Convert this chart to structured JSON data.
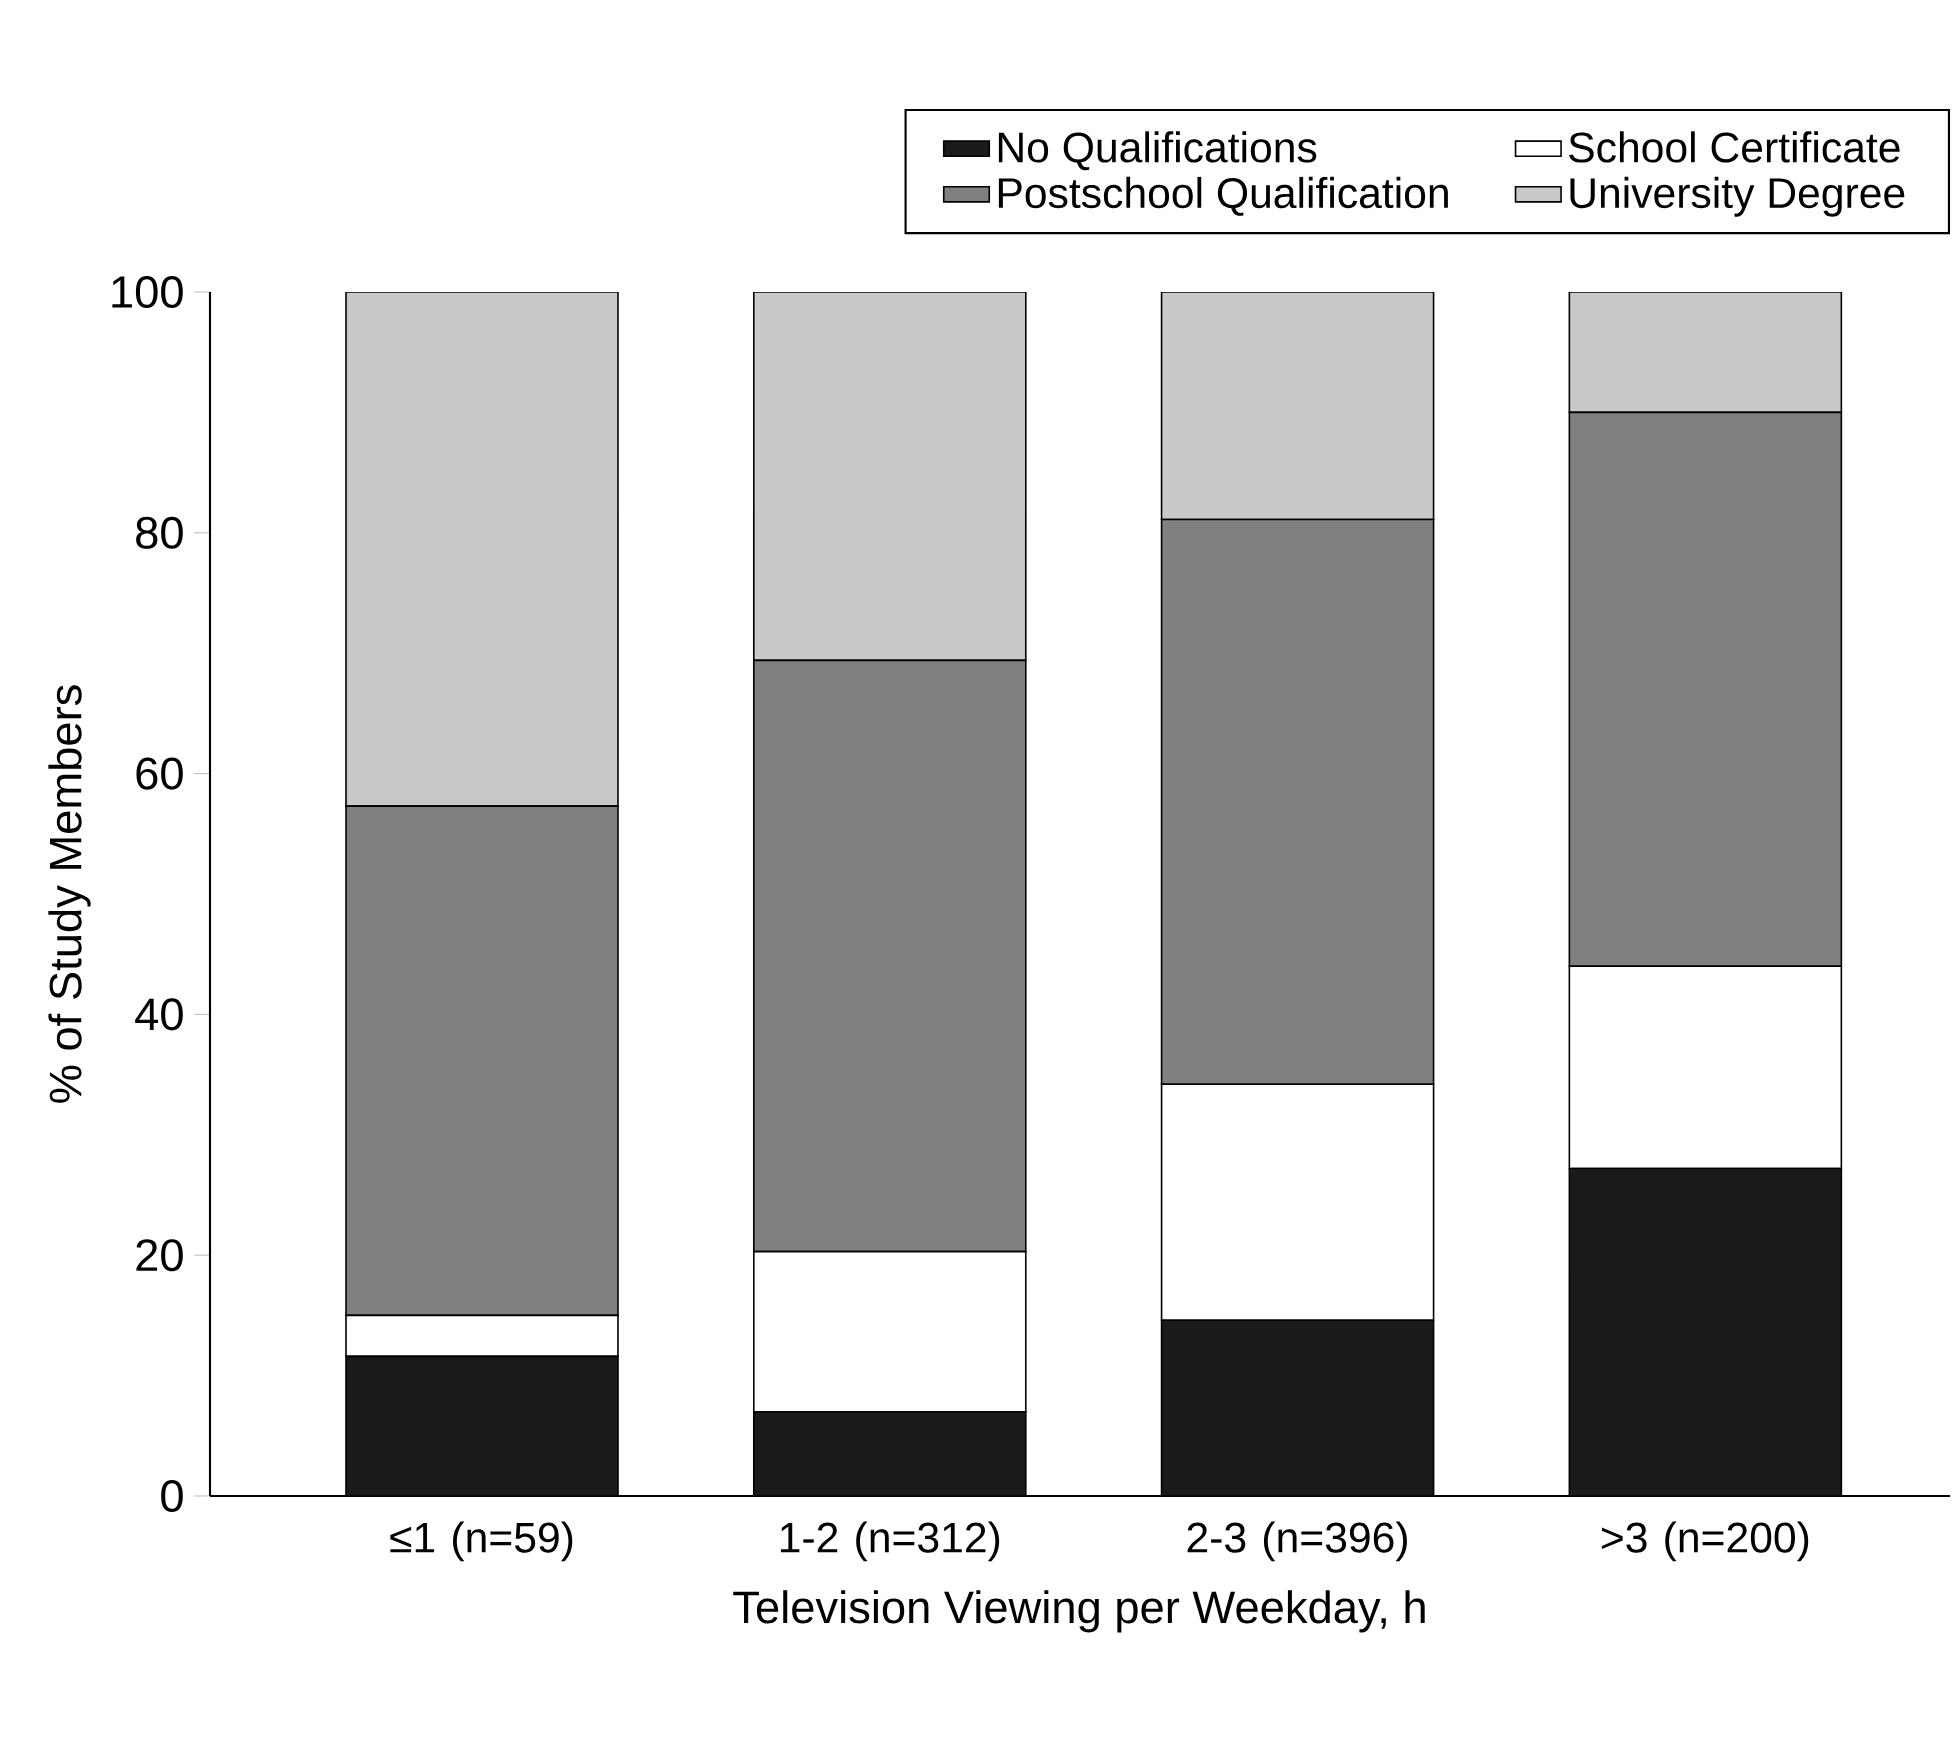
{
  "chart_data": {
    "type": "bar",
    "stacked": true,
    "xlabel": "Television Viewing per Weekday, h",
    "ylabel": "% of Study Members",
    "categories": [
      "≤1 (n=59)",
      "1-2 (n=312)",
      "2-3 (n=396)",
      ">3 (n=200)"
    ],
    "series": [
      {
        "name": "No Qualifications",
        "color": "#1a1a1a",
        "values": [
          11.6,
          7.0,
          14.6,
          27.2
        ]
      },
      {
        "name": "School Certificate",
        "color": "#ffffff",
        "values": [
          3.4,
          13.3,
          19.6,
          16.8
        ]
      },
      {
        "name": "Postschool Qualification",
        "color": "#808080",
        "values": [
          42.3,
          49.1,
          46.9,
          46.0
        ]
      },
      {
        "name": "University Degree",
        "color": "#c8c9cb",
        "values": [
          42.7,
          30.6,
          18.9,
          10.0
        ]
      }
    ],
    "ylim": [
      0,
      100
    ],
    "yticks": [
      0,
      20,
      40,
      60,
      80,
      100
    ],
    "legend": "top right"
  }
}
